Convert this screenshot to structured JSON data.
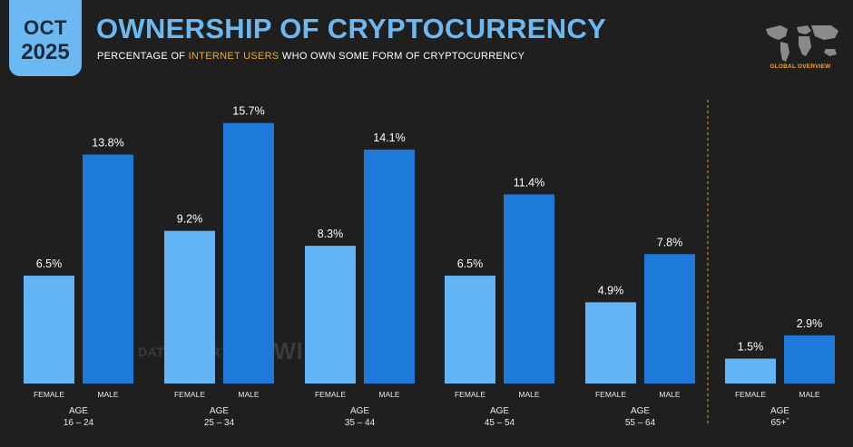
{
  "header": {
    "badge_month": "OCT",
    "badge_year": "2025",
    "title": "OWNERSHIP OF CRYPTOCURRENCY",
    "subtitle_pre": "PERCENTAGE OF ",
    "subtitle_highlight": "INTERNET USERS",
    "subtitle_post": " WHO OWN SOME FORM OF CRYPTOCURRENCY",
    "logo_label": "GLOBAL OVERVIEW"
  },
  "watermark": {
    "datareportal": "DATAREPORTAL",
    "gwi": "GWI."
  },
  "colors": {
    "female": "#64b5f6",
    "male": "#1e7ad9",
    "title": "#6cb8f0",
    "highlight": "#f5a623",
    "background": "#1f1f1f"
  },
  "chart_data": {
    "type": "bar",
    "title": "OWNERSHIP OF CRYPTOCURRENCY",
    "unit": "%",
    "ylim": [
      0,
      17
    ],
    "series_labels": [
      "FEMALE",
      "MALE"
    ],
    "groups": [
      {
        "age_label": "AGE",
        "range": "16 – 24",
        "female": 6.5,
        "male": 13.8
      },
      {
        "age_label": "AGE",
        "range": "25 – 34",
        "female": 9.2,
        "male": 15.7
      },
      {
        "age_label": "AGE",
        "range": "35 – 44",
        "female": 8.3,
        "male": 14.1
      },
      {
        "age_label": "AGE",
        "range": "45 – 54",
        "female": 6.5,
        "male": 11.4
      },
      {
        "age_label": "AGE",
        "range": "55 – 64",
        "female": 4.9,
        "male": 7.8
      },
      {
        "age_label": "AGE",
        "range": "65+",
        "note": "*",
        "female": 1.5,
        "male": 2.9
      }
    ]
  }
}
